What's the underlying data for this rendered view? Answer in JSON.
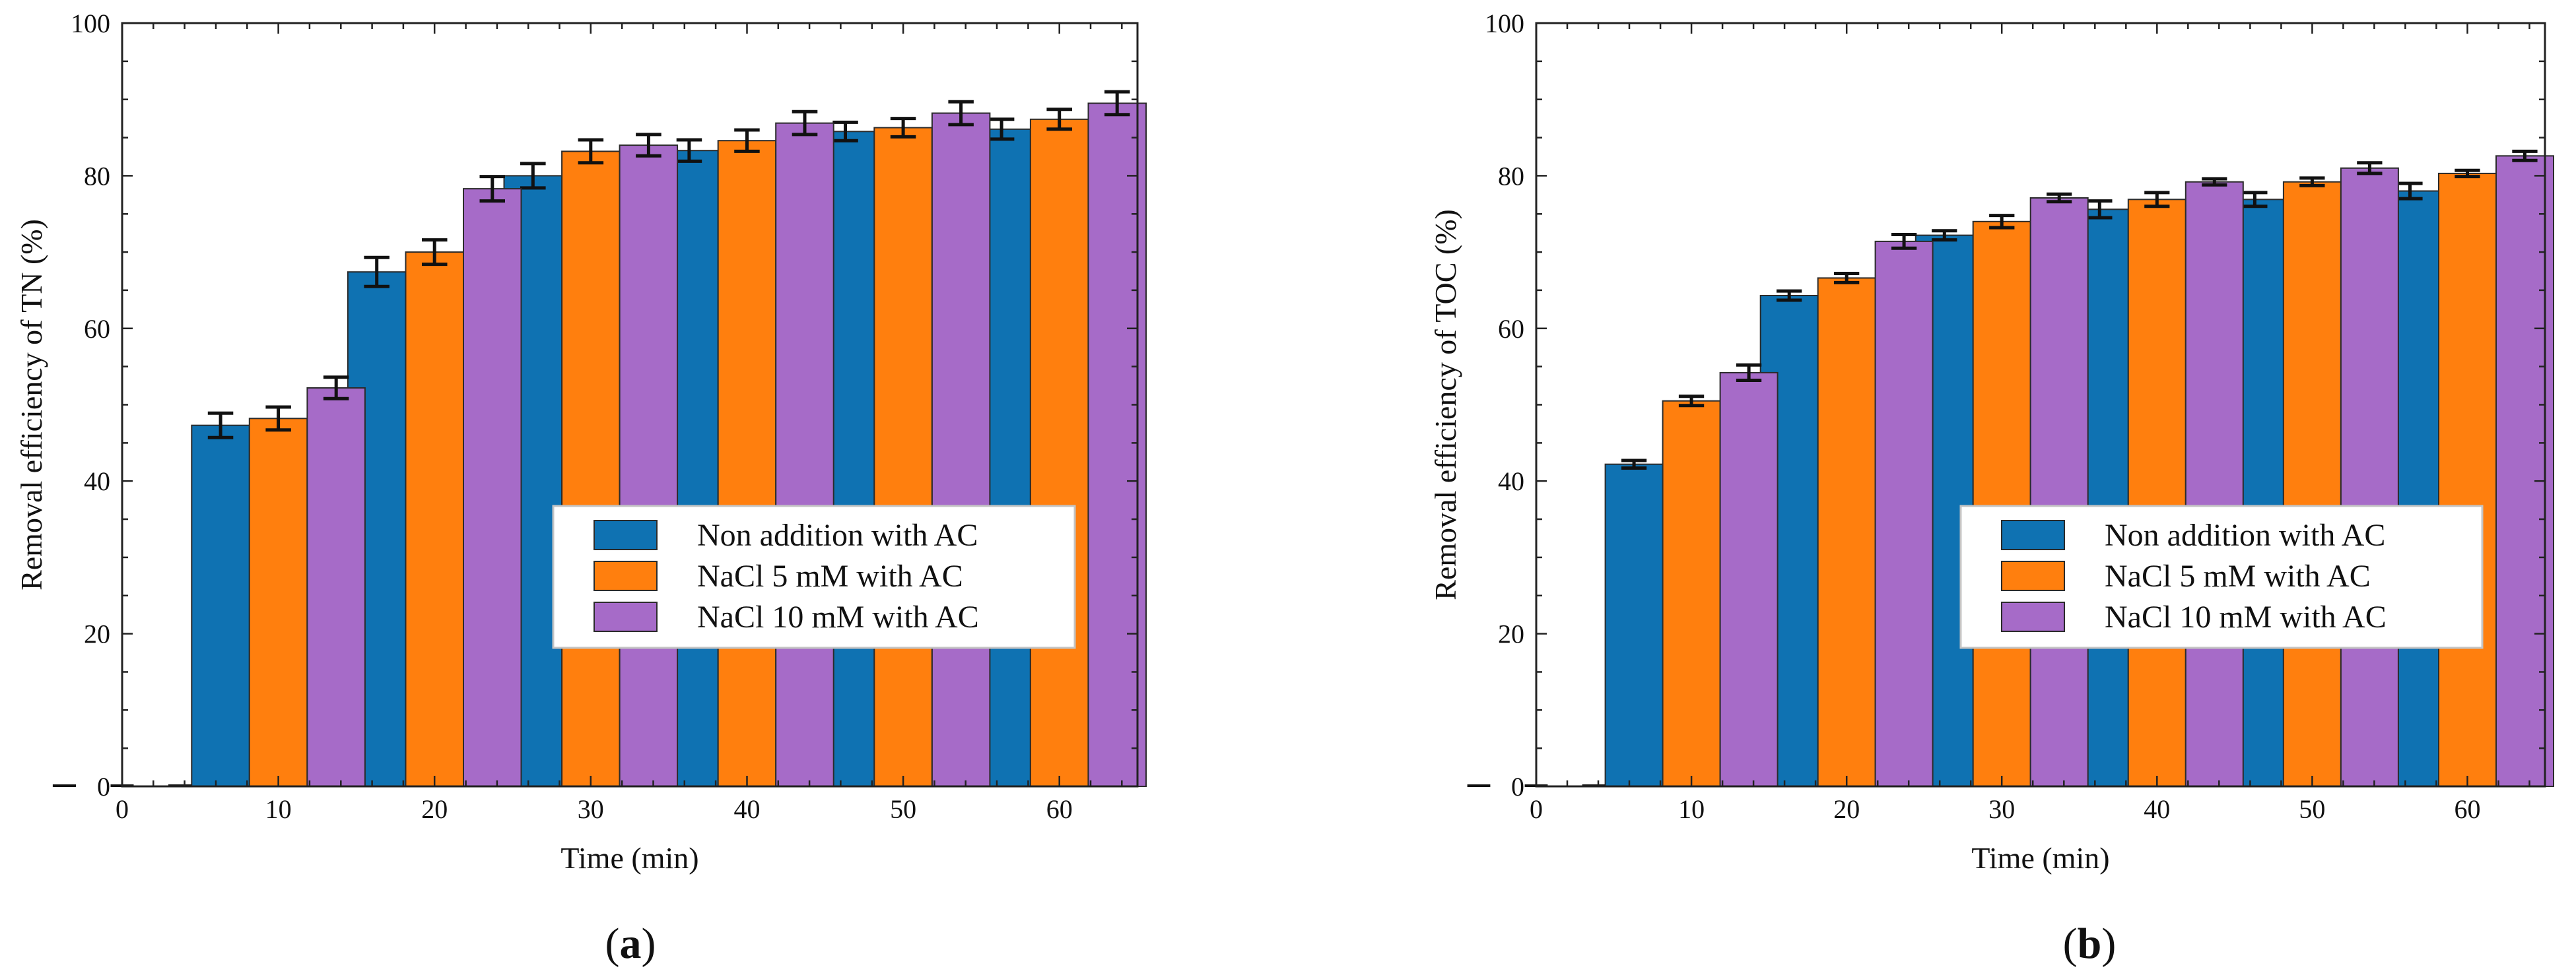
{
  "figure": {
    "panels": [
      {
        "id": "a",
        "label_open": "(",
        "label_letter": "a",
        "label_close": ")"
      },
      {
        "id": "b",
        "label_open": "(",
        "label_letter": "b",
        "label_close": ")"
      }
    ]
  },
  "chart_data": [
    {
      "type": "bar",
      "panel": "a",
      "title": "",
      "xlabel": "Time (min)",
      "ylabel": "Removal efficiency of TN (%)",
      "xlim": [
        0,
        65
      ],
      "ylim": [
        0,
        100
      ],
      "xticks": [
        0,
        10,
        20,
        30,
        40,
        50,
        60
      ],
      "yticks": [
        0,
        20,
        40,
        60,
        80,
        100
      ],
      "categories": [
        0,
        10,
        20,
        30,
        40,
        50,
        60
      ],
      "legend_position": "lower-right",
      "series": [
        {
          "name": "Non addition with AC",
          "color": "#0F72B2",
          "values": [
            0,
            47.3,
            67.4,
            80.0,
            83.3,
            85.8,
            86.1
          ],
          "errors": [
            0,
            1.6,
            1.9,
            1.6,
            1.4,
            1.2,
            1.3
          ]
        },
        {
          "name": "NaCl 5 mM with AC",
          "color": "#FF7F0E",
          "values": [
            0,
            48.2,
            70.0,
            83.2,
            84.6,
            86.3,
            87.4
          ],
          "errors": [
            0,
            1.5,
            1.6,
            1.5,
            1.4,
            1.2,
            1.3
          ]
        },
        {
          "name": "NaCl 10 mM with AC",
          "color": "#A66BC8",
          "values": [
            0,
            52.2,
            78.3,
            84.0,
            86.9,
            88.2,
            89.5
          ],
          "errors": [
            0,
            1.4,
            1.6,
            1.4,
            1.5,
            1.5,
            1.5
          ]
        }
      ]
    },
    {
      "type": "bar",
      "panel": "b",
      "title": "",
      "xlabel": "Time (min)",
      "ylabel": "Removal efficiency of TOC (%)",
      "xlim": [
        0,
        65
      ],
      "ylim": [
        0,
        100
      ],
      "xticks": [
        0,
        10,
        20,
        30,
        40,
        50,
        60
      ],
      "yticks": [
        0,
        20,
        40,
        60,
        80,
        100
      ],
      "categories": [
        0,
        10,
        20,
        30,
        40,
        50,
        60
      ],
      "legend_position": "lower-right",
      "series": [
        {
          "name": "Non addition with AC",
          "color": "#0F72B2",
          "values": [
            0,
            42.2,
            64.3,
            72.2,
            75.6,
            76.9,
            78.0
          ],
          "errors": [
            0,
            0.5,
            0.6,
            0.6,
            1.1,
            0.9,
            1.0
          ]
        },
        {
          "name": "NaCl 5 mM with AC",
          "color": "#FF7F0E",
          "values": [
            0,
            50.5,
            66.6,
            74.0,
            76.9,
            79.2,
            80.3
          ],
          "errors": [
            0,
            0.6,
            0.6,
            0.8,
            0.9,
            0.5,
            0.4
          ]
        },
        {
          "name": "NaCl 10 mM with AC",
          "color": "#A66BC8",
          "values": [
            0,
            54.2,
            71.4,
            77.1,
            79.2,
            81.0,
            82.6
          ],
          "errors": [
            0,
            1.0,
            0.9,
            0.5,
            0.4,
            0.7,
            0.6
          ]
        }
      ]
    }
  ]
}
